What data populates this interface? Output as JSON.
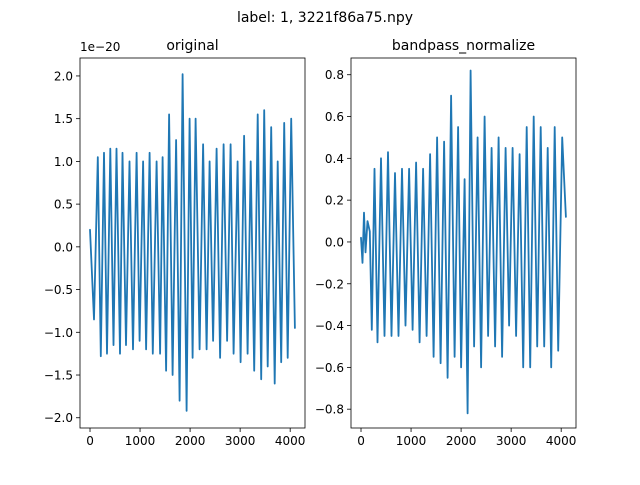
{
  "figure": {
    "suptitle": "label: 1, 3221f86a75.npy",
    "line_color": "#1f77b4"
  },
  "chart_data": [
    {
      "type": "line",
      "title": "original",
      "xlabel": "",
      "ylabel": "",
      "offset_label": "1e−20",
      "xlim": [
        -200,
        4296
      ],
      "ylim": [
        -2.12,
        2.21
      ],
      "x_ticks": [
        0,
        1000,
        2000,
        3000,
        4000
      ],
      "x_tick_labels": [
        "0",
        "1000",
        "2000",
        "3000",
        "4000"
      ],
      "y_ticks": [
        -2.0,
        -1.5,
        -1.0,
        -0.5,
        0.0,
        0.5,
        1.0,
        1.5,
        2.0
      ],
      "y_tick_labels": [
        "−2.0",
        "−1.5",
        "−1.0",
        "−0.5",
        "0.0",
        "0.5",
        "1.0",
        "1.5",
        "2.0"
      ],
      "grid": false,
      "series": [
        {
          "x": [
            0,
            80,
            155,
            215,
            280,
            340,
            405,
            470,
            530,
            600,
            650,
            720,
            790,
            860,
            930,
            990,
            1060,
            1120,
            1190,
            1255,
            1330,
            1400,
            1450,
            1520,
            1580,
            1650,
            1720,
            1790,
            1850,
            1930,
            1990,
            2050,
            2110,
            2190,
            2260,
            2330,
            2390,
            2460,
            2530,
            2600,
            2670,
            2740,
            2810,
            2870,
            2950,
            3010,
            3080,
            3150,
            3210,
            3280,
            3350,
            3420,
            3480,
            3550,
            3620,
            3690,
            3750,
            3820,
            3880,
            3950,
            4020,
            4095
          ],
          "y": [
            0.2,
            -0.85,
            1.05,
            -1.28,
            1.1,
            -1.25,
            1.15,
            -1.15,
            1.15,
            -1.25,
            1.1,
            -1.15,
            1.0,
            -1.2,
            1.1,
            -1.1,
            1.0,
            -1.2,
            1.1,
            -1.25,
            1.0,
            -1.25,
            1.05,
            -1.45,
            1.55,
            -1.5,
            1.25,
            -1.8,
            2.02,
            -1.92,
            1.5,
            -1.3,
            1.5,
            -1.2,
            1.2,
            -1.2,
            1.0,
            -1.1,
            1.15,
            -1.3,
            1.2,
            -1.1,
            1.2,
            -1.25,
            1.0,
            -1.35,
            1.3,
            -1.25,
            1.0,
            -1.45,
            1.55,
            -1.55,
            1.6,
            -1.4,
            1.4,
            -1.6,
            1.0,
            -1.35,
            1.45,
            -1.3,
            1.5,
            -0.95
          ]
        }
      ]
    },
    {
      "type": "line",
      "title": "bandpass_normalize",
      "xlabel": "",
      "ylabel": "",
      "offset_label": "",
      "xlim": [
        -200,
        4296
      ],
      "ylim": [
        -0.89,
        0.88
      ],
      "x_ticks": [
        0,
        1000,
        2000,
        3000,
        4000
      ],
      "x_tick_labels": [
        "0",
        "1000",
        "2000",
        "3000",
        "4000"
      ],
      "y_ticks": [
        -0.8,
        -0.6,
        -0.4,
        -0.2,
        0.0,
        0.2,
        0.4,
        0.6,
        0.8
      ],
      "y_tick_labels": [
        "−0.8",
        "−0.6",
        "−0.4",
        "−0.2",
        "0.0",
        "0.2",
        "0.4",
        "0.6",
        "0.8"
      ],
      "grid": false,
      "series": [
        {
          "x": [
            0,
            30,
            60,
            90,
            130,
            175,
            215,
            270,
            330,
            400,
            470,
            540,
            610,
            680,
            750,
            820,
            890,
            960,
            1030,
            1100,
            1170,
            1240,
            1310,
            1380,
            1450,
            1520,
            1590,
            1660,
            1730,
            1800,
            1870,
            1940,
            2000,
            2070,
            2130,
            2190,
            2260,
            2330,
            2400,
            2470,
            2540,
            2610,
            2680,
            2750,
            2820,
            2890,
            2960,
            3030,
            3100,
            3170,
            3240,
            3310,
            3380,
            3450,
            3520,
            3590,
            3660,
            3730,
            3800,
            3870,
            3940,
            4020,
            4095
          ],
          "y": [
            0.02,
            -0.1,
            0.14,
            -0.05,
            0.1,
            0.05,
            -0.42,
            0.35,
            -0.48,
            0.4,
            -0.45,
            0.43,
            -0.45,
            0.33,
            -0.45,
            0.35,
            -0.4,
            0.35,
            -0.42,
            0.38,
            -0.48,
            0.35,
            -0.45,
            0.42,
            -0.55,
            0.5,
            -0.58,
            0.48,
            -0.65,
            0.7,
            -0.55,
            0.55,
            -0.6,
            0.3,
            -0.82,
            0.82,
            -0.5,
            0.5,
            -0.6,
            0.6,
            -0.45,
            0.45,
            -0.5,
            0.5,
            -0.55,
            0.45,
            -0.4,
            0.45,
            -0.45,
            0.42,
            -0.6,
            0.55,
            -0.6,
            0.6,
            -0.5,
            0.55,
            -0.5,
            0.45,
            -0.6,
            0.55,
            -0.52,
            0.5,
            0.12
          ]
        }
      ]
    }
  ]
}
